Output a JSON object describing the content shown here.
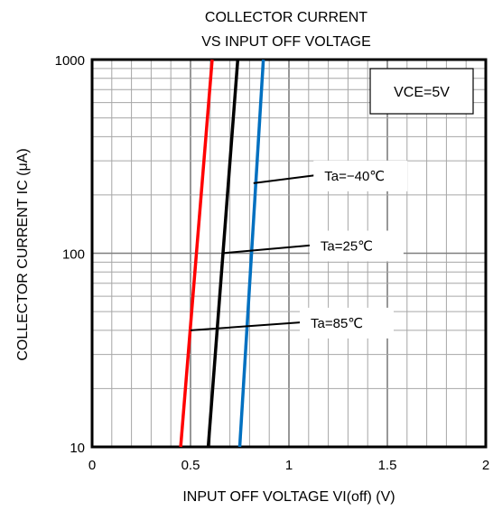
{
  "chart_data": {
    "type": "line",
    "title": [
      "COLLECTOR CURRENT",
      "VS INPUT OFF VOLTAGE"
    ],
    "xlabel": "INPUT OFF VOLTAGE VI(off) (V)",
    "ylabel": "COLLECTOR CURRENT IC (μA)",
    "xlim": [
      0,
      2
    ],
    "ylim": [
      10,
      1000
    ],
    "yscale": "log",
    "x_ticks": [
      0,
      0.5,
      1,
      1.5,
      2
    ],
    "x_tick_labels": [
      "0",
      "0.5",
      "1",
      "1.5",
      "2"
    ],
    "y_ticks": [
      10,
      100,
      1000
    ],
    "y_tick_labels": [
      "10",
      "100",
      "1000"
    ],
    "grid": true,
    "condition_label": "VCE=5V",
    "series": [
      {
        "name": "Ta=85℃",
        "color": "#ff0000",
        "points": [
          [
            0.45,
            10
          ],
          [
            0.61,
            1000
          ]
        ]
      },
      {
        "name": "Ta=25℃",
        "color": "#000000",
        "points": [
          [
            0.59,
            10
          ],
          [
            0.74,
            1000
          ]
        ]
      },
      {
        "name": "Ta=−40℃",
        "color": "#0070c0",
        "points": [
          [
            0.75,
            10
          ],
          [
            0.87,
            1000
          ]
        ]
      }
    ],
    "annotations": [
      {
        "series_index": 2,
        "label": "Ta=−40℃",
        "at": [
          0.82,
          230
        ],
        "text_at": [
          1.07,
          230
        ]
      },
      {
        "series_index": 1,
        "label": "Ta=25℃",
        "at": [
          0.66,
          100
        ],
        "text_at": [
          1.05,
          100
        ]
      },
      {
        "series_index": 0,
        "label": "Ta=85℃",
        "at": [
          0.5,
          40
        ],
        "text_at": [
          1.0,
          40
        ]
      }
    ]
  }
}
